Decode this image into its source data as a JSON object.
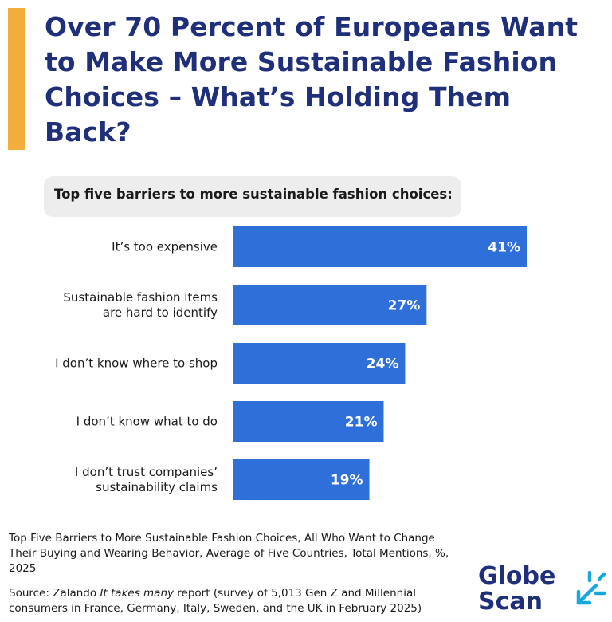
{
  "header": {
    "title": "Over 70 Percent of Europeans Want to Make More Sustainable Fashion Choices – What’s Holding Them Back?"
  },
  "colors": {
    "accent": "#F2AE3C",
    "title": "#1F2F7A",
    "bar": "#2E6FD9",
    "logo_teal": "#1AA7E0"
  },
  "chart_data": {
    "type": "bar",
    "orientation": "horizontal",
    "title": "Top five barriers to more sustainable fashion choices:",
    "categories": [
      [
        "It’s too expensive"
      ],
      [
        "Sustainable fashion items",
        "are hard to identify"
      ],
      [
        "I don’t know where to shop"
      ],
      [
        "I don’t know what to do"
      ],
      [
        "I don’t trust companies’",
        "sustainability claims"
      ]
    ],
    "values": [
      41,
      27,
      24,
      21,
      19
    ],
    "value_labels": [
      "41%",
      "27%",
      "24%",
      "21%",
      "19%"
    ],
    "unit": "%",
    "xlim": [
      0,
      41
    ],
    "grid": false,
    "legend": "none"
  },
  "footer": {
    "note": "Top Five Barriers to More Sustainable Fashion Choices, All Who Want to Change Their Buying and Wearing Behavior, Average of Five Countries, Total Mentions, %, 2025",
    "source_prefix": "Source: Zalando ",
    "source_italic": "It takes many",
    "source_suffix": " report (survey of 5,013 Gen Z and Millennial consumers in France, Germany, Italy, Sweden, and the UK in February 2025)"
  },
  "logo": {
    "line1": "Globe",
    "line2": "Scan"
  }
}
